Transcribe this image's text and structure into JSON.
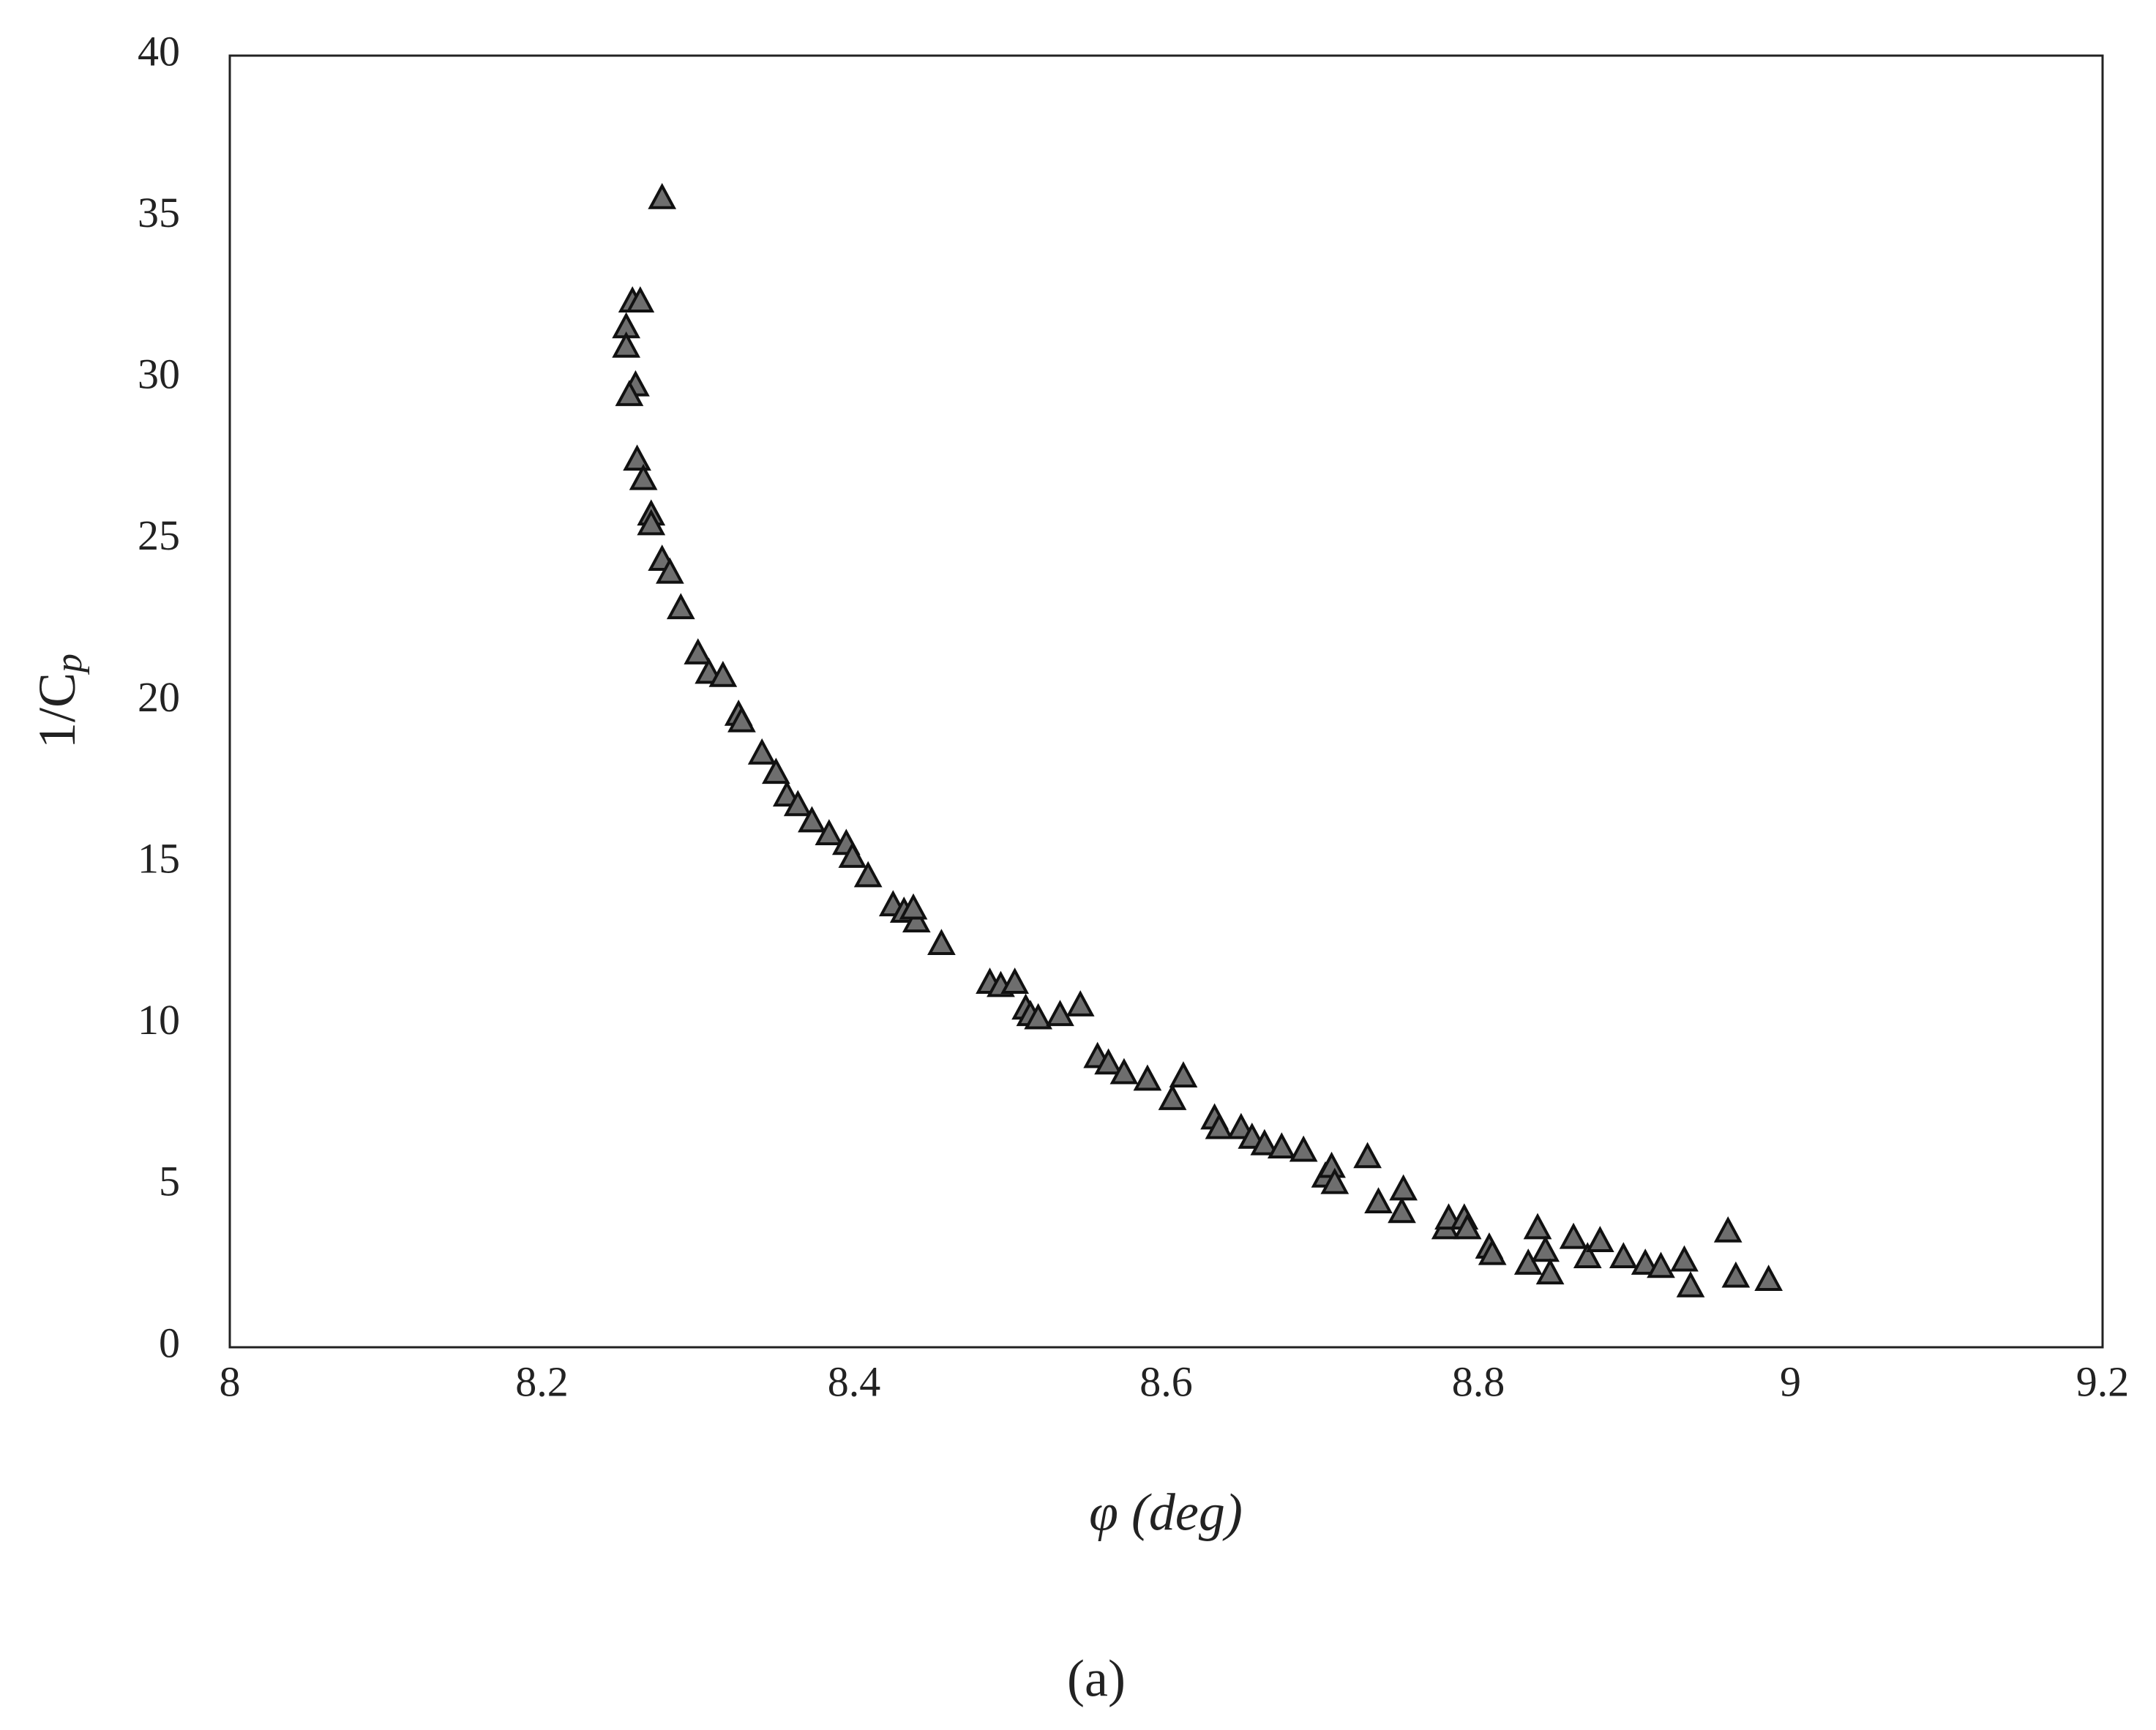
{
  "chart_data": {
    "type": "scatter",
    "xlabel": "φ (deg)",
    "ylabel": {
      "base": "1/C",
      "sub": "p"
    },
    "caption": "(a)",
    "color": "#6e6e6e",
    "marker": "triangle",
    "xlim": [
      8,
      9.2
    ],
    "xticks": [
      8,
      8.2,
      8.4,
      8.6,
      8.8,
      9,
      9.2
    ],
    "ylim": [
      0,
      40
    ],
    "yticks": [
      0,
      5,
      10,
      15,
      20,
      25,
      30,
      35,
      40
    ],
    "grid": false,
    "x": [
      8.277,
      8.258,
      8.263,
      8.254,
      8.254,
      8.26,
      8.256,
      8.261,
      8.265,
      8.27,
      8.27,
      8.277,
      8.282,
      8.289,
      8.3,
      8.307,
      8.316,
      8.326,
      8.328,
      8.341,
      8.35,
      8.357,
      8.364,
      8.373,
      8.384,
      8.395,
      8.399,
      8.409,
      8.425,
      8.432,
      8.44,
      8.438,
      8.456,
      8.487,
      8.494,
      8.503,
      8.51,
      8.513,
      8.518,
      8.532,
      8.545,
      8.556,
      8.563,
      8.573,
      8.588,
      8.604,
      8.611,
      8.631,
      8.634,
      8.648,
      8.655,
      8.663,
      8.674,
      8.688,
      8.702,
      8.706,
      8.708,
      8.729,
      8.736,
      8.751,
      8.752,
      8.779,
      8.781,
      8.791,
      8.793,
      8.807,
      8.809,
      8.832,
      8.838,
      8.843,
      8.846,
      8.861,
      8.87,
      8.878,
      8.893,
      8.907,
      8.917,
      8.932,
      8.936,
      8.96,
      8.965,
      8.986
    ],
    "values": [
      35.6,
      32.4,
      32.4,
      31.6,
      31.0,
      29.8,
      29.5,
      27.5,
      26.9,
      25.8,
      25.5,
      24.4,
      24.0,
      22.9,
      21.5,
      20.9,
      20.8,
      19.6,
      19.4,
      18.4,
      17.8,
      17.1,
      16.8,
      16.3,
      15.9,
      15.6,
      15.2,
      14.6,
      13.7,
      13.5,
      13.2,
      13.6,
      12.5,
      11.3,
      11.2,
      11.3,
      10.5,
      10.3,
      10.2,
      10.3,
      10.6,
      9.0,
      8.8,
      8.5,
      8.3,
      7.7,
      8.4,
      7.1,
      6.8,
      6.8,
      6.5,
      6.3,
      6.2,
      6.1,
      5.3,
      5.6,
      5.1,
      5.9,
      4.5,
      4.2,
      4.9,
      3.7,
      4.0,
      4.0,
      3.7,
      3.1,
      2.9,
      2.6,
      3.7,
      3.0,
      2.3,
      3.4,
      2.8,
      3.3,
      2.8,
      2.6,
      2.5,
      2.7,
      1.9,
      3.6,
      2.2,
      2.1
    ]
  }
}
